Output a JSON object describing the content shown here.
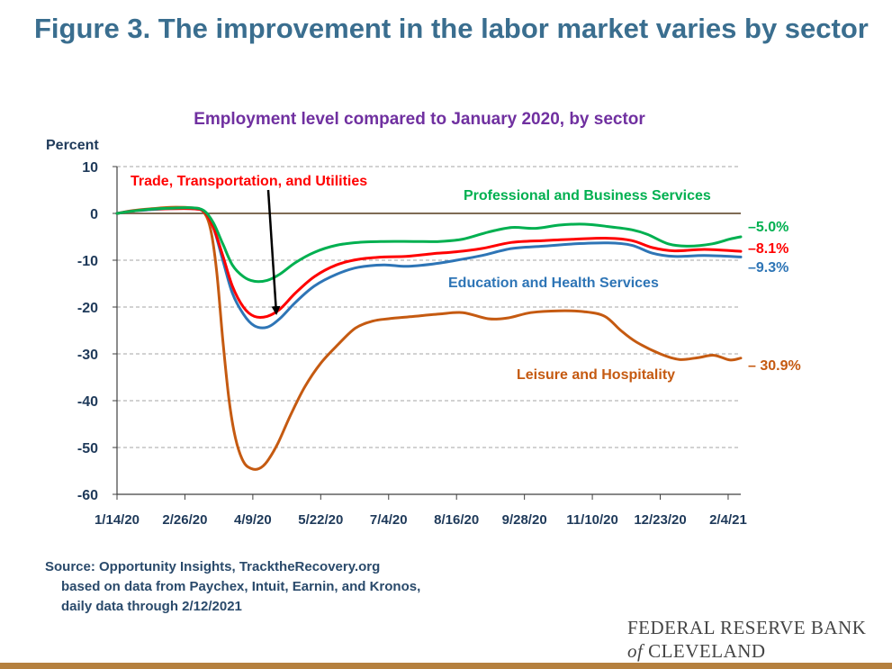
{
  "figure_title": "Figure 3. The improvement in the labor market varies by sector",
  "source": {
    "line1": "Source: Opportunity Insights, TracktheRecovery.org",
    "line2": "based on data from Paychex, Intuit, Earnin, and Kronos,",
    "line3": "daily data through 2/12/2021"
  },
  "logo": {
    "line1": "FEDERAL RESERVE BANK",
    "of": "of",
    "line2": "CLEVELAND"
  },
  "chart_data": {
    "type": "line",
    "title": "Employment level compared to January 2020, by sector",
    "ylabel": "Percent",
    "xlabel": "",
    "ylim": [
      -60,
      10
    ],
    "yticks": [
      10,
      0,
      -10,
      -20,
      -30,
      -40,
      -50,
      -60
    ],
    "xlim": [
      "2020-01-14",
      "2021-02-12"
    ],
    "xticks": [
      {
        "date": "2020-01-14",
        "label": "1/14/20"
      },
      {
        "date": "2020-02-26",
        "label": "2/26/20"
      },
      {
        "date": "2020-04-09",
        "label": "4/9/20"
      },
      {
        "date": "2020-05-22",
        "label": "5/22/20"
      },
      {
        "date": "2020-07-04",
        "label": "7/4/20"
      },
      {
        "date": "2020-08-16",
        "label": "8/16/20"
      },
      {
        "date": "2020-09-28",
        "label": "9/28/20"
      },
      {
        "date": "2020-11-10",
        "label": "11/10/20"
      },
      {
        "date": "2020-12-23",
        "label": "12/23/20"
      },
      {
        "date": "2021-02-04",
        "label": "2/4/21"
      }
    ],
    "grid": "horizontal dashed",
    "series": [
      {
        "name": "Leisure and Hospitality",
        "color": "#c55a11",
        "end_label": "– 30.9%",
        "points": [
          [
            "2020-01-14",
            0
          ],
          [
            "2020-01-24",
            0.6
          ],
          [
            "2020-02-05",
            1.0
          ],
          [
            "2020-02-17",
            1.3
          ],
          [
            "2020-03-01",
            1.2
          ],
          [
            "2020-03-08",
            0.6
          ],
          [
            "2020-03-13",
            -3
          ],
          [
            "2020-03-17",
            -12
          ],
          [
            "2020-03-21",
            -27
          ],
          [
            "2020-03-25",
            -40
          ],
          [
            "2020-03-29",
            -48
          ],
          [
            "2020-04-03",
            -53
          ],
          [
            "2020-04-08",
            -54.5
          ],
          [
            "2020-04-13",
            -54.5
          ],
          [
            "2020-04-18",
            -53
          ],
          [
            "2020-04-25",
            -49
          ],
          [
            "2020-05-03",
            -43
          ],
          [
            "2020-05-12",
            -37
          ],
          [
            "2020-05-22",
            -32
          ],
          [
            "2020-06-02",
            -28
          ],
          [
            "2020-06-13",
            -24.5
          ],
          [
            "2020-06-24",
            -23
          ],
          [
            "2020-07-04",
            -22.5
          ],
          [
            "2020-07-20",
            -22
          ],
          [
            "2020-08-05",
            -21.5
          ],
          [
            "2020-08-20",
            -21.2
          ],
          [
            "2020-09-05",
            -22.5
          ],
          [
            "2020-09-18",
            -22.3
          ],
          [
            "2020-10-02",
            -21.2
          ],
          [
            "2020-10-20",
            -20.8
          ],
          [
            "2020-11-05",
            -21
          ],
          [
            "2020-11-18",
            -22
          ],
          [
            "2020-11-28",
            -25
          ],
          [
            "2020-12-08",
            -27.5
          ],
          [
            "2020-12-23",
            -30
          ],
          [
            "2021-01-04",
            -31.2
          ],
          [
            "2021-01-16",
            -30.8
          ],
          [
            "2021-01-26",
            -30.3
          ],
          [
            "2021-02-05",
            -31.3
          ],
          [
            "2021-02-12",
            -30.9
          ]
        ]
      },
      {
        "name": "Education and Health Services",
        "color": "#2e75b6",
        "end_label": "–9.3%",
        "points": [
          [
            "2020-01-14",
            0
          ],
          [
            "2020-01-24",
            0.5
          ],
          [
            "2020-02-05",
            0.8
          ],
          [
            "2020-02-17",
            1.0
          ],
          [
            "2020-03-01",
            1.0
          ],
          [
            "2020-03-09",
            0.4
          ],
          [
            "2020-03-15",
            -3
          ],
          [
            "2020-03-21",
            -10
          ],
          [
            "2020-03-27",
            -17
          ],
          [
            "2020-04-03",
            -21.5
          ],
          [
            "2020-04-10",
            -24
          ],
          [
            "2020-04-18",
            -24.3
          ],
          [
            "2020-04-26",
            -22.5
          ],
          [
            "2020-05-06",
            -19
          ],
          [
            "2020-05-18",
            -15.5
          ],
          [
            "2020-06-01",
            -13
          ],
          [
            "2020-06-15",
            -11.5
          ],
          [
            "2020-07-01",
            -11
          ],
          [
            "2020-07-15",
            -11.3
          ],
          [
            "2020-08-01",
            -10.8
          ],
          [
            "2020-08-16",
            -10
          ],
          [
            "2020-09-01",
            -9
          ],
          [
            "2020-09-20",
            -7.5
          ],
          [
            "2020-10-10",
            -7
          ],
          [
            "2020-10-30",
            -6.5
          ],
          [
            "2020-11-20",
            -6.3
          ],
          [
            "2020-12-05",
            -6.8
          ],
          [
            "2020-12-18",
            -8.5
          ],
          [
            "2021-01-01",
            -9.2
          ],
          [
            "2021-01-20",
            -9
          ],
          [
            "2021-02-12",
            -9.3
          ]
        ]
      },
      {
        "name": "Trade, Transportation, and Utilities",
        "color": "#ff0000",
        "end_label": "–8.1%",
        "points": [
          [
            "2020-01-14",
            0
          ],
          [
            "2020-01-24",
            0.5
          ],
          [
            "2020-02-05",
            0.9
          ],
          [
            "2020-02-17",
            1.0
          ],
          [
            "2020-03-01",
            1.0
          ],
          [
            "2020-03-09",
            0.4
          ],
          [
            "2020-03-15",
            -3
          ],
          [
            "2020-03-21",
            -9
          ],
          [
            "2020-03-27",
            -15.5
          ],
          [
            "2020-04-03",
            -20
          ],
          [
            "2020-04-10",
            -22
          ],
          [
            "2020-04-18",
            -22
          ],
          [
            "2020-04-26",
            -20.5
          ],
          [
            "2020-05-06",
            -17
          ],
          [
            "2020-05-18",
            -13.5
          ],
          [
            "2020-06-01",
            -11
          ],
          [
            "2020-06-15",
            -9.8
          ],
          [
            "2020-07-01",
            -9.3
          ],
          [
            "2020-07-15",
            -9.2
          ],
          [
            "2020-08-01",
            -8.6
          ],
          [
            "2020-08-16",
            -8.2
          ],
          [
            "2020-09-01",
            -7.5
          ],
          [
            "2020-09-20",
            -6.2
          ],
          [
            "2020-10-10",
            -5.8
          ],
          [
            "2020-10-30",
            -5.5
          ],
          [
            "2020-11-20",
            -5.3
          ],
          [
            "2020-12-05",
            -5.8
          ],
          [
            "2020-12-18",
            -7.3
          ],
          [
            "2021-01-01",
            -8
          ],
          [
            "2021-01-20",
            -7.7
          ],
          [
            "2021-02-12",
            -8.1
          ]
        ]
      },
      {
        "name": "Professional and Business Services",
        "color": "#00b050",
        "end_label": "–5.0%",
        "points": [
          [
            "2020-01-14",
            0
          ],
          [
            "2020-01-24",
            0.5
          ],
          [
            "2020-02-05",
            0.9
          ],
          [
            "2020-02-17",
            1.1
          ],
          [
            "2020-03-01",
            1.2
          ],
          [
            "2020-03-09",
            0.6
          ],
          [
            "2020-03-15",
            -2
          ],
          [
            "2020-03-21",
            -6.5
          ],
          [
            "2020-03-27",
            -11
          ],
          [
            "2020-04-03",
            -13.5
          ],
          [
            "2020-04-10",
            -14.5
          ],
          [
            "2020-04-18",
            -14.3
          ],
          [
            "2020-04-26",
            -13
          ],
          [
            "2020-05-06",
            -10.5
          ],
          [
            "2020-05-18",
            -8.3
          ],
          [
            "2020-06-01",
            -6.8
          ],
          [
            "2020-06-15",
            -6.2
          ],
          [
            "2020-07-01",
            -6
          ],
          [
            "2020-07-20",
            -6
          ],
          [
            "2020-08-05",
            -6
          ],
          [
            "2020-08-20",
            -5.5
          ],
          [
            "2020-09-05",
            -4
          ],
          [
            "2020-09-20",
            -3
          ],
          [
            "2020-10-05",
            -3.2
          ],
          [
            "2020-10-20",
            -2.5
          ],
          [
            "2020-11-05",
            -2.3
          ],
          [
            "2020-11-20",
            -2.8
          ],
          [
            "2020-12-05",
            -3.5
          ],
          [
            "2020-12-15",
            -4.5
          ],
          [
            "2020-12-28",
            -6.5
          ],
          [
            "2021-01-10",
            -7
          ],
          [
            "2021-01-25",
            -6.5
          ],
          [
            "2021-02-05",
            -5.5
          ],
          [
            "2021-02-12",
            -5.0
          ]
        ]
      }
    ],
    "annotations": [
      {
        "text": "Trade, Transportation,  and Utilities",
        "color": "#ff0000"
      },
      {
        "text": "Professional  and Business Services",
        "color": "#00b050"
      },
      {
        "text": "Education  and Health Services",
        "color": "#2e75b6"
      },
      {
        "text": "Leisure  and Hospitality",
        "color": "#c55a11"
      }
    ],
    "reference_line": {
      "y": 0,
      "color": "#7f6b55"
    },
    "arrow": {
      "from_label": "Trade, Transportation,  and Utilities",
      "to": [
        "2020-04-12",
        -22
      ]
    }
  }
}
